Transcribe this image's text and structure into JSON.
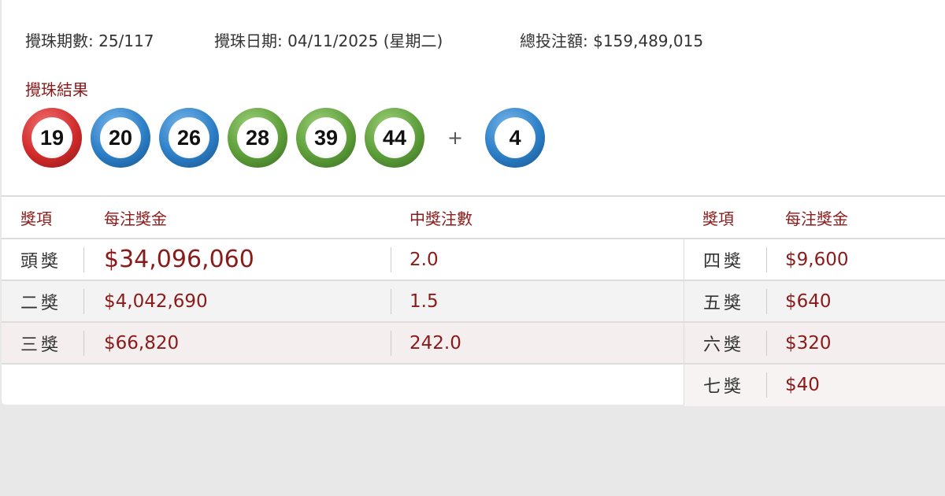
{
  "draw": {
    "period_label": "攪珠期數: 25/117",
    "date_label": "攪珠日期: 04/11/2025 (星期二)",
    "turnover_label": "總投注額: $159,489,015"
  },
  "result": {
    "label": "攪珠結果",
    "balls": [
      {
        "number": "19",
        "color": "red"
      },
      {
        "number": "20",
        "color": "blue"
      },
      {
        "number": "26",
        "color": "blue"
      },
      {
        "number": "28",
        "color": "green"
      },
      {
        "number": "39",
        "color": "green"
      },
      {
        "number": "44",
        "color": "green"
      }
    ],
    "plus": "+",
    "extra": {
      "number": "4",
      "color": "blue"
    }
  },
  "table": {
    "headers": {
      "prize": "獎項",
      "per_unit": "每注獎金",
      "winners": "中獎注數"
    },
    "left": [
      {
        "prize": "頭獎",
        "amount": "$34,096,060",
        "winners": "2.0"
      },
      {
        "prize": "二獎",
        "amount": "$4,042,690",
        "winners": "1.5"
      },
      {
        "prize": "三獎",
        "amount": "$66,820",
        "winners": "242.0"
      }
    ],
    "right": [
      {
        "prize": "四獎",
        "amount": "$9,600"
      },
      {
        "prize": "五獎",
        "amount": "$640"
      },
      {
        "prize": "六獎",
        "amount": "$320"
      },
      {
        "prize": "七獎",
        "amount": "$40"
      }
    ]
  },
  "colors": {
    "accent": "#8b1a1a",
    "red_ball": "#d22c2c",
    "blue_ball": "#2d7fc7",
    "green_ball": "#5d9e3a",
    "page_bg": "#e8e8e8"
  }
}
